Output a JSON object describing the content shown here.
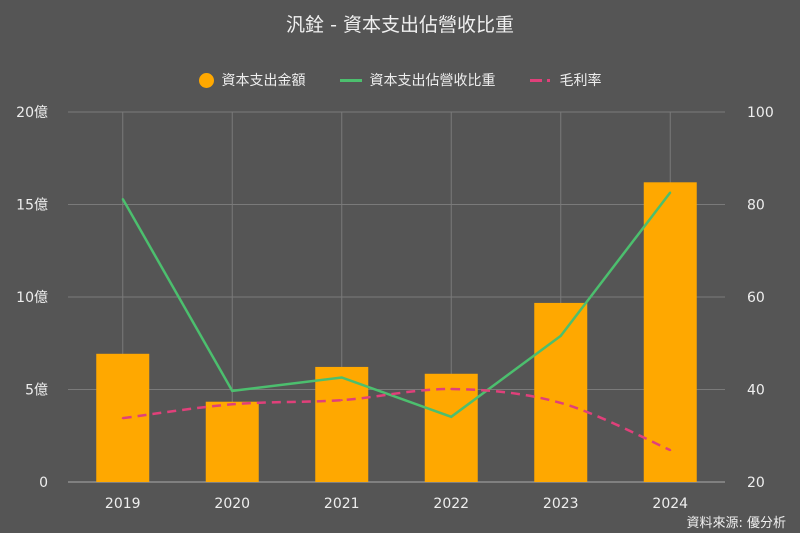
{
  "chart_data": {
    "type": "bar",
    "title": "汎銓 - 資本支出佔營收比重",
    "categories": [
      "2019",
      "2020",
      "2021",
      "2022",
      "2023",
      "2024"
    ],
    "series": [
      {
        "name": "資本支出金額",
        "type": "bar",
        "axis": "left",
        "color": "#FFA800",
        "values": [
          6.93,
          4.34,
          6.22,
          5.85,
          9.68,
          16.2
        ]
      },
      {
        "name": "資本支出佔營收比重",
        "type": "line",
        "axis": "right",
        "color": "#4CBF6E",
        "values": [
          81.2,
          39.7,
          42.6,
          34.1,
          51.6,
          82.6
        ]
      },
      {
        "name": "毛利率",
        "type": "line",
        "style": "dashed",
        "axis": "right",
        "color": "#E0407A",
        "values": [
          33.8,
          36.8,
          37.7,
          40.1,
          37.1,
          26.9
        ]
      }
    ],
    "y_left": {
      "range": [
        0,
        20
      ],
      "ticks": [
        0,
        5,
        10,
        15,
        20
      ],
      "tick_labels": [
        "0",
        "5億",
        "10億",
        "15億",
        "20億"
      ]
    },
    "y_right": {
      "range": [
        20,
        100
      ],
      "ticks": [
        20,
        40,
        60,
        80,
        100
      ],
      "tick_labels": [
        "20",
        "40",
        "60",
        "80",
        "100"
      ]
    },
    "grid": true,
    "legend": "top-center",
    "source": "資料來源: 優分析"
  }
}
